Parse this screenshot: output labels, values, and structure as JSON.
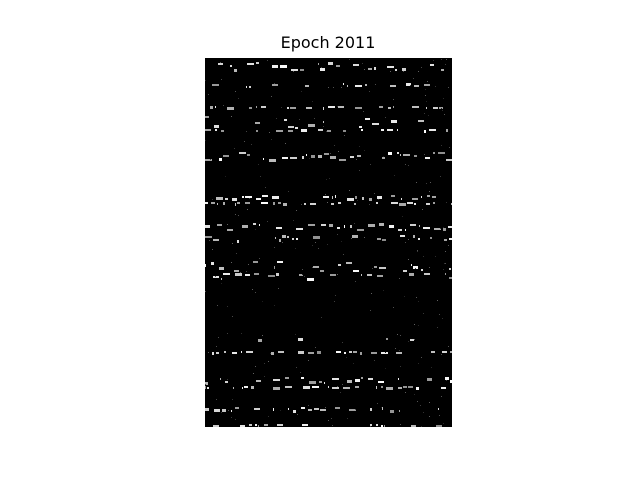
{
  "figure": {
    "title": "Epoch 2011"
  },
  "image": {
    "description_icon": "generated-image",
    "background": "#000000",
    "foreground": "#ffffff"
  }
}
